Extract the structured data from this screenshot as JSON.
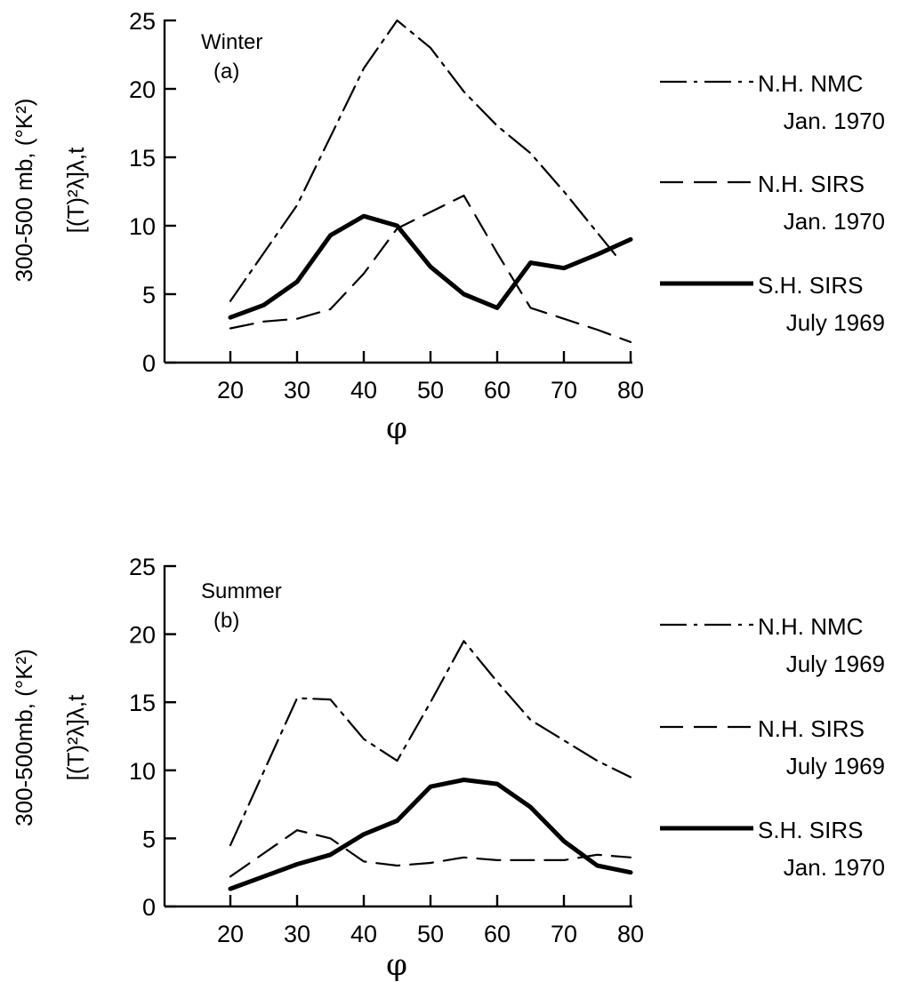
{
  "chart_data": [
    {
      "type": "line",
      "panel_title": "Winter",
      "panel_label": "(a)",
      "ylabel_line1": "300-500 mb, (°K²)",
      "ylabel_line2": "[(T)²λ]λ,t",
      "xlabel": "φ",
      "x_ticks": [
        "20",
        "30",
        "40",
        "50",
        "60",
        "70",
        "80"
      ],
      "y_ticks": [
        "0",
        "5",
        "10",
        "15",
        "20",
        "25"
      ],
      "xlim": [
        10,
        80
      ],
      "ylim": [
        0,
        25
      ],
      "series": [
        {
          "name": "N.H. NMC",
          "name_line2": "Jan. 1970",
          "style": "dashdot",
          "x": [
            20,
            30,
            40,
            45,
            50,
            55,
            60,
            65,
            70,
            75,
            78
          ],
          "y": [
            4.5,
            11.5,
            21.5,
            25.0,
            23.0,
            19.8,
            17.3,
            15.3,
            12.5,
            9.5,
            7.7
          ]
        },
        {
          "name": "N.H. SIRS",
          "name_line2": "Jan. 1970",
          "style": "dashed",
          "x": [
            20,
            25,
            30,
            35,
            40,
            45,
            50,
            55,
            60,
            65,
            70,
            75,
            80
          ],
          "y": [
            2.5,
            3.0,
            3.2,
            3.9,
            6.5,
            9.8,
            11.0,
            12.2,
            8.0,
            4.0,
            3.2,
            2.4,
            1.5
          ]
        },
        {
          "name": "S.H. SIRS",
          "name_line2": "July 1969",
          "style": "solid",
          "x": [
            20,
            25,
            30,
            35,
            40,
            45,
            50,
            55,
            60,
            65,
            70,
            75,
            80
          ],
          "y": [
            3.3,
            4.2,
            5.9,
            9.3,
            10.7,
            10.0,
            7.0,
            5.0,
            4.0,
            7.3,
            6.9,
            7.9,
            9.0
          ]
        }
      ]
    },
    {
      "type": "line",
      "panel_title": "Summer",
      "panel_label": "(b)",
      "ylabel_line1": "300-500mb, (°K²)",
      "ylabel_line2": "[(T)²λ]λ,t",
      "xlabel": "φ",
      "x_ticks": [
        "20",
        "30",
        "40",
        "50",
        "60",
        "70",
        "80"
      ],
      "y_ticks": [
        "0",
        "5",
        "10",
        "15",
        "20",
        "25"
      ],
      "xlim": [
        10,
        80
      ],
      "ylim": [
        0,
        25
      ],
      "series": [
        {
          "name": "N.H. NMC",
          "name_line2": "July 1969",
          "style": "dashdot",
          "x": [
            20,
            30,
            35,
            40,
            45,
            50,
            55,
            60,
            65,
            70,
            75,
            80
          ],
          "y": [
            4.5,
            15.3,
            15.2,
            12.3,
            10.7,
            15.0,
            19.5,
            16.5,
            13.7,
            12.2,
            10.7,
            9.5
          ]
        },
        {
          "name": "N.H. SIRS",
          "name_line2": "July 1969",
          "style": "dashed",
          "x": [
            20,
            30,
            35,
            40,
            45,
            50,
            55,
            60,
            65,
            70,
            75,
            80
          ],
          "y": [
            2.2,
            5.6,
            5.0,
            3.3,
            3.0,
            3.2,
            3.6,
            3.4,
            3.4,
            3.4,
            3.8,
            3.6
          ]
        },
        {
          "name": "S.H. SIRS",
          "name_line2": "Jan. 1970",
          "style": "solid",
          "x": [
            20,
            25,
            30,
            35,
            40,
            45,
            50,
            55,
            60,
            65,
            70,
            75,
            80
          ],
          "y": [
            1.3,
            2.2,
            3.1,
            3.8,
            5.3,
            6.3,
            8.8,
            9.3,
            9.0,
            7.3,
            4.8,
            3.0,
            2.5
          ]
        }
      ]
    }
  ]
}
